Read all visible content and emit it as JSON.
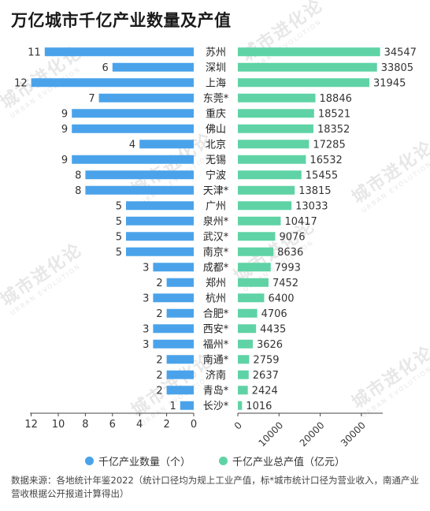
{
  "title": "万亿城市千亿产业数量及产值",
  "watermark": {
    "main": "城市进化论",
    "sub": "URBAN EVOLUTION"
  },
  "colors": {
    "count": "#4aa3ea",
    "value": "#5fd3a5",
    "axis": "#444444",
    "text": "#333333"
  },
  "chart_data": {
    "type": "bar",
    "categories": [
      "苏州",
      "深圳",
      "上海",
      "东莞*",
      "重庆",
      "佛山",
      "北京",
      "无锡",
      "宁波",
      "天津*",
      "广州",
      "泉州*",
      "武汉*",
      "南京*",
      "成都*",
      "郑州",
      "杭州",
      "合肥*",
      "西安*",
      "福州*",
      "南通*",
      "济南",
      "青岛*",
      "长沙*"
    ],
    "series": [
      {
        "name": "千亿产业数量（个）",
        "values": [
          11,
          6,
          12,
          7,
          9,
          9,
          4,
          9,
          8,
          8,
          5,
          5,
          5,
          5,
          3,
          2,
          3,
          2,
          3,
          3,
          2,
          2,
          2,
          1
        ]
      },
      {
        "name": "千亿产业总产值（亿元）",
        "values": [
          34547,
          33805,
          31945,
          18846,
          18521,
          18352,
          17285,
          16532,
          15455,
          13815,
          13033,
          10417,
          9076,
          8636,
          7993,
          7452,
          6400,
          4706,
          4435,
          3626,
          2759,
          2637,
          2424,
          1016
        ]
      }
    ],
    "left_axis": {
      "ticks": [
        12,
        10,
        8,
        6,
        4,
        2,
        0
      ],
      "lim": [
        0,
        12
      ]
    },
    "right_axis": {
      "ticks": [
        0,
        10000,
        20000,
        30000
      ],
      "lim": [
        0,
        35000
      ]
    },
    "xlabel": "",
    "ylabel": ""
  },
  "source": "数据来源：各地统计年鉴2022（统计口径均为规上工业产值，标*城市统计口径为营业收入，南通产业营收根据公开报道计算得出）"
}
